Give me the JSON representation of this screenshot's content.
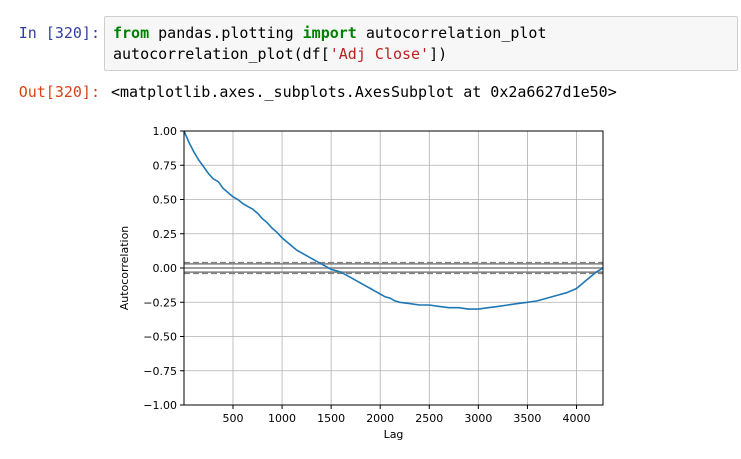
{
  "cell": {
    "in_prompt": "In [320]:",
    "out_prompt": "Out[320]:",
    "code": {
      "line1_kw1": "from",
      "line1_mod": " pandas.plotting ",
      "line1_kw2": "import",
      "line1_name": " autocorrelation_plot",
      "line2_func": "autocorrelation_plot(df[",
      "line2_str": "'Adj Close'",
      "line2_end": "])"
    },
    "output_text": "<matplotlib.axes._subplots.AxesSubplot at 0x2a6627d1e50>"
  },
  "chart_data": {
    "type": "line",
    "title": "",
    "xlabel": "Lag",
    "ylabel": "Autocorrelation",
    "xlim": [
      1,
      4270
    ],
    "ylim": [
      -1.0,
      1.0
    ],
    "x_ticks": [
      500,
      1000,
      1500,
      2000,
      2500,
      3000,
      3500,
      4000
    ],
    "y_ticks": [
      1.0,
      0.75,
      0.5,
      0.25,
      0.0,
      -0.25,
      -0.5,
      -0.75,
      -1.0
    ],
    "x_tick_labels": [
      "500",
      "1000",
      "1500",
      "2000",
      "2500",
      "3000",
      "3500",
      "4000"
    ],
    "y_tick_labels": [
      "1.00",
      "0.75",
      "0.50",
      "0.25",
      "0.00",
      "−0.25",
      "−0.50",
      "−0.75",
      "−1.00"
    ],
    "confidence_lines": [
      0.0,
      0.03,
      -0.03,
      0.039,
      -0.039
    ],
    "series": [
      {
        "name": "Adj Close",
        "color": "#1f77b4",
        "x": [
          1,
          50,
          100,
          150,
          200,
          250,
          300,
          350,
          400,
          450,
          500,
          550,
          600,
          650,
          700,
          750,
          800,
          850,
          900,
          950,
          1000,
          1050,
          1100,
          1150,
          1200,
          1250,
          1300,
          1350,
          1400,
          1450,
          1500,
          1550,
          1600,
          1650,
          1700,
          1750,
          1800,
          1850,
          1900,
          1950,
          2000,
          2050,
          2100,
          2150,
          2200,
          2300,
          2400,
          2500,
          2600,
          2700,
          2800,
          2900,
          3000,
          3100,
          3200,
          3300,
          3400,
          3500,
          3600,
          3700,
          3800,
          3900,
          4000,
          4050,
          4100,
          4150,
          4200,
          4270
        ],
        "y": [
          1.0,
          0.92,
          0.85,
          0.79,
          0.74,
          0.69,
          0.65,
          0.63,
          0.58,
          0.55,
          0.52,
          0.5,
          0.47,
          0.45,
          0.43,
          0.4,
          0.36,
          0.33,
          0.29,
          0.26,
          0.22,
          0.19,
          0.16,
          0.13,
          0.11,
          0.09,
          0.07,
          0.05,
          0.03,
          0.01,
          -0.01,
          -0.02,
          -0.03,
          -0.05,
          -0.07,
          -0.09,
          -0.11,
          -0.13,
          -0.15,
          -0.17,
          -0.19,
          -0.21,
          -0.22,
          -0.24,
          -0.25,
          -0.26,
          -0.27,
          -0.27,
          -0.28,
          -0.29,
          -0.29,
          -0.3,
          -0.3,
          -0.29,
          -0.28,
          -0.27,
          -0.26,
          -0.25,
          -0.24,
          -0.22,
          -0.2,
          -0.18,
          -0.15,
          -0.12,
          -0.09,
          -0.06,
          -0.03,
          0.0
        ]
      }
    ]
  }
}
